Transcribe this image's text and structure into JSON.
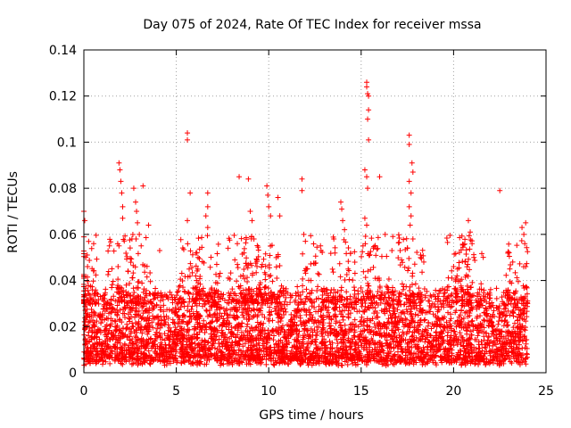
{
  "chart_data": {
    "type": "scatter",
    "title": "Day 075 of 2024, Rate Of TEC Index for receiver mssa",
    "xlabel": "GPS time / hours",
    "ylabel": "ROTI / TECUs",
    "xlim": [
      0,
      25
    ],
    "ylim": [
      0,
      0.14
    ],
    "xticks": [
      0,
      5,
      10,
      15,
      20,
      25
    ],
    "xtick_labels": [
      "0",
      "5",
      "10",
      "15",
      "20",
      "25"
    ],
    "yticks": [
      0,
      0.02,
      0.04,
      0.06,
      0.08,
      0.1,
      0.12,
      0.14
    ],
    "ytick_labels": [
      "0",
      "0.02",
      "0.04",
      "0.06",
      "0.08",
      "0.1",
      "0.12",
      "0.14"
    ],
    "grid": true,
    "marker": "+",
    "color": "#ff0000",
    "baseline": {
      "min": 0.005,
      "max": 0.036
    },
    "notable_points": [
      {
        "x": 0.0,
        "y": 0.07
      },
      {
        "x": 0.05,
        "y": 0.066
      },
      {
        "x": 0.1,
        "y": 0.05
      },
      {
        "x": 0.2,
        "y": 0.046
      },
      {
        "x": 1.9,
        "y": 0.091
      },
      {
        "x": 1.95,
        "y": 0.088
      },
      {
        "x": 2.0,
        "y": 0.083
      },
      {
        "x": 2.05,
        "y": 0.078
      },
      {
        "x": 2.1,
        "y": 0.072
      },
      {
        "x": 2.1,
        "y": 0.067
      },
      {
        "x": 1.9,
        "y": 0.055
      },
      {
        "x": 1.85,
        "y": 0.046
      },
      {
        "x": 2.7,
        "y": 0.08
      },
      {
        "x": 2.8,
        "y": 0.074
      },
      {
        "x": 2.85,
        "y": 0.07
      },
      {
        "x": 2.9,
        "y": 0.065
      },
      {
        "x": 3.2,
        "y": 0.081
      },
      {
        "x": 3.0,
        "y": 0.06
      },
      {
        "x": 3.1,
        "y": 0.055
      },
      {
        "x": 2.6,
        "y": 0.058
      },
      {
        "x": 3.5,
        "y": 0.064
      },
      {
        "x": 4.1,
        "y": 0.053
      },
      {
        "x": 5.6,
        "y": 0.104
      },
      {
        "x": 5.6,
        "y": 0.101
      },
      {
        "x": 5.75,
        "y": 0.078
      },
      {
        "x": 5.6,
        "y": 0.066
      },
      {
        "x": 6.7,
        "y": 0.078
      },
      {
        "x": 6.7,
        "y": 0.072
      },
      {
        "x": 6.6,
        "y": 0.068
      },
      {
        "x": 6.7,
        "y": 0.063
      },
      {
        "x": 7.8,
        "y": 0.054
      },
      {
        "x": 8.4,
        "y": 0.085
      },
      {
        "x": 8.9,
        "y": 0.084
      },
      {
        "x": 9.0,
        "y": 0.07
      },
      {
        "x": 9.1,
        "y": 0.066
      },
      {
        "x": 9.2,
        "y": 0.058
      },
      {
        "x": 9.9,
        "y": 0.081
      },
      {
        "x": 9.95,
        "y": 0.077
      },
      {
        "x": 10.0,
        "y": 0.072
      },
      {
        "x": 10.1,
        "y": 0.068
      },
      {
        "x": 10.5,
        "y": 0.076
      },
      {
        "x": 10.6,
        "y": 0.068
      },
      {
        "x": 11.8,
        "y": 0.084
      },
      {
        "x": 11.8,
        "y": 0.079
      },
      {
        "x": 11.9,
        "y": 0.06
      },
      {
        "x": 12.8,
        "y": 0.055
      },
      {
        "x": 13.9,
        "y": 0.074
      },
      {
        "x": 13.95,
        "y": 0.071
      },
      {
        "x": 14.0,
        "y": 0.066
      },
      {
        "x": 14.1,
        "y": 0.062
      },
      {
        "x": 15.3,
        "y": 0.126
      },
      {
        "x": 15.3,
        "y": 0.124
      },
      {
        "x": 15.35,
        "y": 0.121
      },
      {
        "x": 15.4,
        "y": 0.12
      },
      {
        "x": 15.4,
        "y": 0.114
      },
      {
        "x": 15.35,
        "y": 0.11
      },
      {
        "x": 15.4,
        "y": 0.101
      },
      {
        "x": 15.2,
        "y": 0.088
      },
      {
        "x": 15.3,
        "y": 0.085
      },
      {
        "x": 15.35,
        "y": 0.08
      },
      {
        "x": 15.2,
        "y": 0.067
      },
      {
        "x": 15.3,
        "y": 0.064
      },
      {
        "x": 15.1,
        "y": 0.055
      },
      {
        "x": 16.0,
        "y": 0.085
      },
      {
        "x": 16.3,
        "y": 0.06
      },
      {
        "x": 17.6,
        "y": 0.103
      },
      {
        "x": 17.6,
        "y": 0.099
      },
      {
        "x": 17.75,
        "y": 0.091
      },
      {
        "x": 17.8,
        "y": 0.087
      },
      {
        "x": 17.6,
        "y": 0.083
      },
      {
        "x": 17.7,
        "y": 0.078
      },
      {
        "x": 17.6,
        "y": 0.072
      },
      {
        "x": 17.7,
        "y": 0.068
      },
      {
        "x": 17.65,
        "y": 0.064
      },
      {
        "x": 17.8,
        "y": 0.058
      },
      {
        "x": 17.5,
        "y": 0.054
      },
      {
        "x": 20.0,
        "y": 0.046
      },
      {
        "x": 20.8,
        "y": 0.066
      },
      {
        "x": 20.9,
        "y": 0.061
      },
      {
        "x": 21.0,
        "y": 0.056
      },
      {
        "x": 21.1,
        "y": 0.05
      },
      {
        "x": 22.5,
        "y": 0.079
      },
      {
        "x": 23.0,
        "y": 0.052
      },
      {
        "x": 23.2,
        "y": 0.048
      },
      {
        "x": 23.7,
        "y": 0.063
      },
      {
        "x": 23.8,
        "y": 0.06
      },
      {
        "x": 23.9,
        "y": 0.065
      },
      {
        "x": 23.85,
        "y": 0.056
      },
      {
        "x": 23.9,
        "y": 0.046
      }
    ]
  }
}
